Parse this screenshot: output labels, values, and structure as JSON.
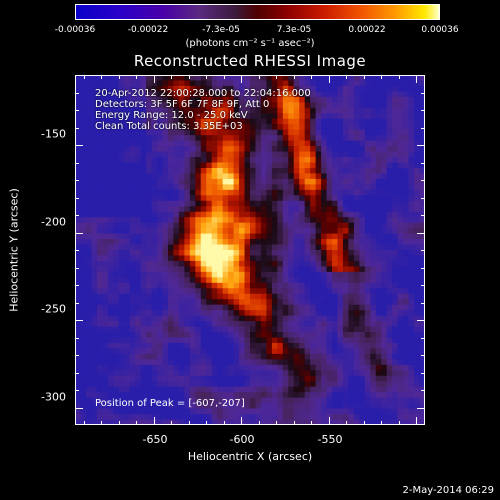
{
  "colorbar": {
    "ticks": [
      "-0.00036",
      "-0.00022",
      "-7.3e-05",
      "7.3e-05",
      "0.00022",
      "0.00036"
    ],
    "unit": "(photons cm⁻² s⁻¹ asec⁻²)"
  },
  "title": "Reconstructed RHESSI Image",
  "annotations": [
    "20-Apr-2012 22:00:28.000 to 22:04:16.000",
    "Detectors: 3F 5F 6F 7F 8F 9F, Att 0",
    "Energy Range: 12.0 - 25.0 keV",
    "Clean    Total counts: 3.35E+03"
  ],
  "peak_text": "Position of Peak = [-607,-207]",
  "axes": {
    "xlabel": "Heliocentric X (arcsec)",
    "ylabel": "Heliocentric Y (arcsec)",
    "xlim": [
      -695,
      -495
    ],
    "ylim": [
      -310,
      -110
    ],
    "xticks": [
      {
        "value": -650,
        "label": "-650"
      },
      {
        "value": -600,
        "label": "-600"
      },
      {
        "value": -550,
        "label": "-550"
      }
    ],
    "yticks": [
      {
        "value": -150,
        "label": "-150"
      },
      {
        "value": -200,
        "label": "-200"
      },
      {
        "value": -250,
        "label": "-250"
      },
      {
        "value": -300,
        "label": "-300"
      }
    ]
  },
  "footer": "2-May-2014 06:29"
}
